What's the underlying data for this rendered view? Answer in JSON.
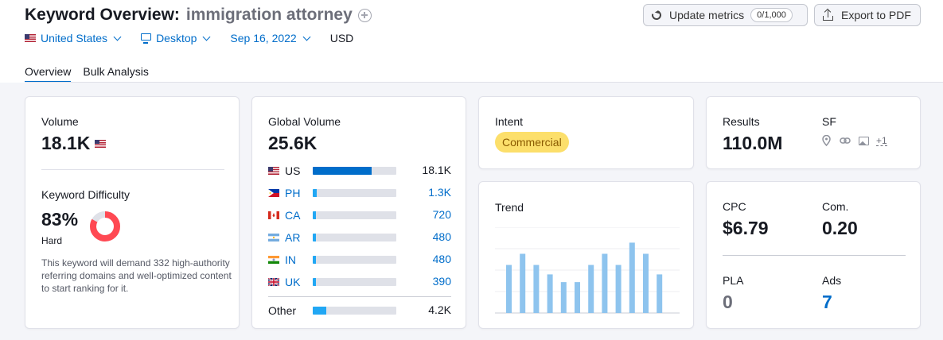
{
  "header": {
    "title": "Keyword Overview:",
    "keyword": "immigration attorney",
    "filters": {
      "country": "United States",
      "device": "Desktop",
      "date": "Sep 16, 2022",
      "currency": "USD"
    },
    "update_label": "Update metrics",
    "update_counter": "0/1,000",
    "export_label": "Export to PDF"
  },
  "tabs": [
    {
      "label": "Overview",
      "active": true
    },
    {
      "label": "Bulk Analysis",
      "active": false
    }
  ],
  "volume": {
    "label": "Volume",
    "value": "18.1K"
  },
  "keyword_difficulty": {
    "label": "Keyword Difficulty",
    "percent": "83%",
    "percent_value": 83,
    "level": "Hard",
    "description": "This keyword will demand 332 high-authority referring domains and well-optimized content to start ranking for it.",
    "color": "#ff4953"
  },
  "global_volume": {
    "label": "Global Volume",
    "value": "25.6K",
    "countries": [
      {
        "code": "US",
        "value": "18.1K",
        "share": 0.707
      },
      {
        "code": "PH",
        "value": "1.3K",
        "share": 0.051
      },
      {
        "code": "CA",
        "value": "720",
        "share": 0.028
      },
      {
        "code": "AR",
        "value": "480",
        "share": 0.019
      },
      {
        "code": "IN",
        "value": "480",
        "share": 0.019
      },
      {
        "code": "UK",
        "value": "390",
        "share": 0.015
      }
    ],
    "other": {
      "label": "Other",
      "value": "4.2K",
      "share": 0.164
    }
  },
  "intent": {
    "label": "Intent",
    "badge": "Commercial"
  },
  "trend": {
    "label": "Trend",
    "values": [
      0.56,
      0.69,
      0.56,
      0.45,
      0.36,
      0.36,
      0.56,
      0.69,
      0.56,
      0.82,
      0.69,
      0.45
    ]
  },
  "results": {
    "label": "Results",
    "value": "110.0M",
    "sf_label": "SF",
    "sf_icons": [
      "map-pin-icon",
      "link-icon",
      "image-icon"
    ],
    "sf_more": "+1"
  },
  "cpc": {
    "cpc_label": "CPC",
    "cpc_value": "$6.79",
    "com_label": "Com.",
    "com_value": "0.20",
    "pla_label": "PLA",
    "pla_value": "0",
    "ads_label": "Ads",
    "ads_value": "7"
  },
  "colors": {
    "accent": "#006dca",
    "bar_light": "#21a7f4",
    "trend_bar": "#8ec4ee",
    "intent_badge": "#fcdf6b"
  }
}
